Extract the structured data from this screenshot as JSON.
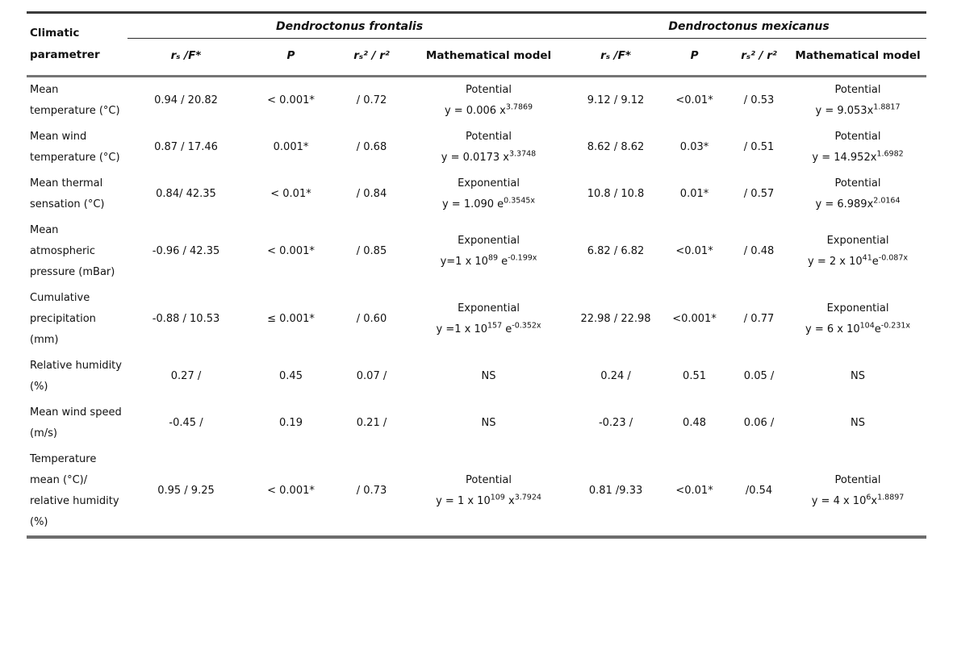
{
  "table": {
    "param_header": "Climatic parametrer",
    "species": [
      {
        "name": "Dendroctonus frontalis"
      },
      {
        "name": "Dendroctonus mexicanus"
      }
    ],
    "col_headers": {
      "rs_f": "rₛ /F*",
      "p": "P",
      "r2": "rₛ² / r²",
      "model": "Mathematical model"
    }
  },
  "rows": [
    {
      "param": "Mean temperature (°C)",
      "f": {
        "rs_f": "0.94 / 20.82",
        "p": "< 0.001*",
        "r2": "/ 0.72",
        "model": {
          "type": "Potential",
          "b1": "y = 0.006 x",
          "s1": "3.7869",
          "b2": "",
          "s2": ""
        }
      },
      "m": {
        "rs_f": "9.12 / 9.12",
        "p": "<0.01*",
        "r2": "/ 0.53",
        "model": {
          "type": "Potential",
          "b1": "y = 9.053x",
          "s1": "1.8817",
          "b2": "",
          "s2": ""
        }
      }
    },
    {
      "param": "Mean wind temperature (°C)",
      "f": {
        "rs_f": "0.87 / 17.46",
        "p": "0.001*",
        "r2": "/ 0.68",
        "model": {
          "type": "Potential",
          "b1": "y = 0.0173 x",
          "s1": "3.3748",
          "b2": "",
          "s2": ""
        }
      },
      "m": {
        "rs_f": "8.62 / 8.62",
        "p": "0.03*",
        "r2": "/ 0.51",
        "model": {
          "type": "Potential",
          "b1": "y = 14.952x",
          "s1": "1.6982",
          "b2": "",
          "s2": ""
        }
      }
    },
    {
      "param": "Mean thermal sensation (°C)",
      "f": {
        "rs_f": "0.84/ 42.35",
        "p": "< 0.01*",
        "r2": "/ 0.84",
        "model": {
          "type": "Exponential",
          "b1": "y = 1.090 e",
          "s1": "0.3545x",
          "b2": "",
          "s2": ""
        }
      },
      "m": {
        "rs_f": "10.8 / 10.8",
        "p": "0.01*",
        "r2": "/ 0.57",
        "model": {
          "type": "Potential",
          "b1": "y = 6.989x",
          "s1": "2.0164",
          "b2": "",
          "s2": ""
        }
      }
    },
    {
      "param": "Mean atmospheric pressure (mBar)",
      "f": {
        "rs_f": "-0.96 / 42.35",
        "p": "< 0.001*",
        "r2": "/ 0.85",
        "model": {
          "type": "Exponential",
          "b1": "y=1 x 10",
          "s1": "89",
          "b2": " e",
          "s2": "-0.199x"
        }
      },
      "m": {
        "rs_f": "6.82 / 6.82",
        "p": "<0.01*",
        "r2": "/ 0.48",
        "model": {
          "type": "Exponential",
          "b1": "y = 2 x 10",
          "s1": "41",
          "b2": "e",
          "s2": "-0.087x"
        }
      }
    },
    {
      "param": "Cumulative precipitation (mm)",
      "f": {
        "rs_f": "-0.88 / 10.53",
        "p": "≤ 0.001*",
        "r2": "/ 0.60",
        "model": {
          "type": "Exponential",
          "b1": "y =1 x 10",
          "s1": "157",
          "b2": " e",
          "s2": "-0.352x"
        }
      },
      "m": {
        "rs_f": "22.98 / 22.98",
        "p": "<0.001*",
        "r2": "/ 0.77",
        "model": {
          "type": "Exponential",
          "b1": "y = 6 x 10",
          "s1": "104",
          "b2": "e",
          "s2": "-0.231x"
        }
      }
    },
    {
      "param": "Relative humidity (%)",
      "f": {
        "rs_f": "0.27 /",
        "p": "0.45",
        "r2": "0.07 /",
        "model": {
          "type": "NS",
          "b1": "",
          "s1": "",
          "b2": "",
          "s2": ""
        }
      },
      "m": {
        "rs_f": "0.24 /",
        "p": "0.51",
        "r2": "0.05 /",
        "model": {
          "type": "NS",
          "b1": "",
          "s1": "",
          "b2": "",
          "s2": ""
        }
      }
    },
    {
      "param": "Mean wind speed  (m/s)",
      "f": {
        "rs_f": "-0.45 /",
        "p": "0.19",
        "r2": "0.21 /",
        "model": {
          "type": "NS",
          "b1": "",
          "s1": "",
          "b2": "",
          "s2": ""
        }
      },
      "m": {
        "rs_f": "-0.23 /",
        "p": "0.48",
        "r2": "0.06 /",
        "model": {
          "type": "NS",
          "b1": "",
          "s1": "",
          "b2": "",
          "s2": ""
        }
      }
    },
    {
      "param": "Temperature mean (°C)/ relative humidity (%)",
      "f": {
        "rs_f": "0.95 / 9.25",
        "p": "< 0.001*",
        "r2": "/ 0.73",
        "model": {
          "type": "Potential",
          "b1": "y = 1 x 10",
          "s1": "109",
          "b2": " x",
          "s2": "3.7924"
        }
      },
      "m": {
        "rs_f": "0.81 /9.33",
        "p": "<0.01*",
        "r2": "/0.54",
        "model": {
          "type": "Potential",
          "b1": "y = 4 x 10",
          "s1": "6",
          "b2": "x",
          "s2": "1.8897"
        }
      }
    }
  ]
}
